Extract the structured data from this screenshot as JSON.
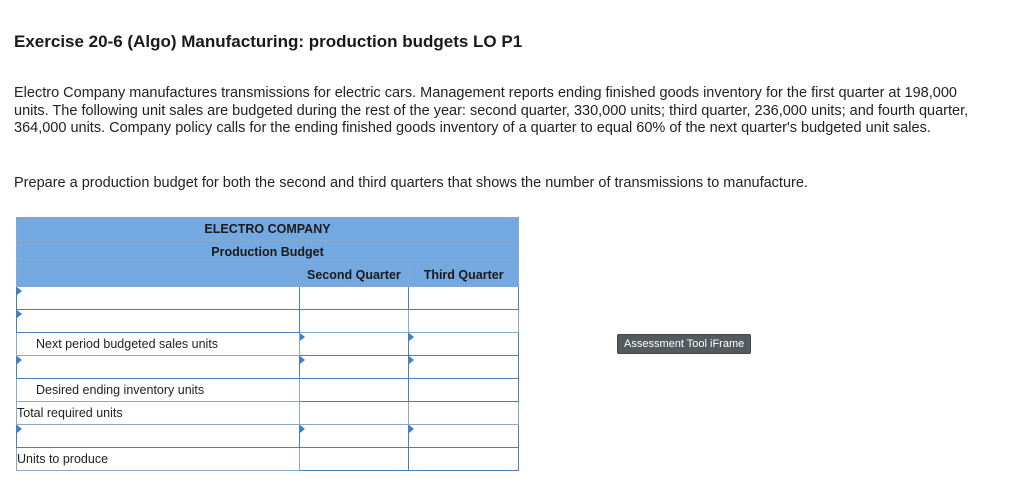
{
  "exercise": {
    "title": "Exercise 20-6 (Algo) Manufacturing: production budgets LO P1",
    "paragraph1": "Electro Company manufactures transmissions for electric cars. Management reports ending finished goods inventory for the first quarter at 198,000 units. The following unit sales are budgeted during the rest of the year: second quarter, 330,000 units; third quarter, 236,000 units; and fourth quarter, 364,000 units. Company policy calls for the ending finished goods inventory of a quarter to equal 60% of the next quarter's budgeted unit sales.",
    "paragraph2": "Prepare a production budget for both the second and third quarters that shows the number of transmissions to manufacture."
  },
  "budget": {
    "company": "ELECTRO COMPANY",
    "subtitle": "Production Budget",
    "columns": [
      "Second Quarter",
      "Third Quarter"
    ],
    "rows": {
      "r1": "",
      "r2": "",
      "r3": "Next period budgeted sales units",
      "r4": "",
      "r5": "Desired ending inventory units",
      "r6": "Total required units",
      "r7": "",
      "r8": "Units to produce"
    }
  },
  "assessment_button": "Assessment Tool iFrame"
}
